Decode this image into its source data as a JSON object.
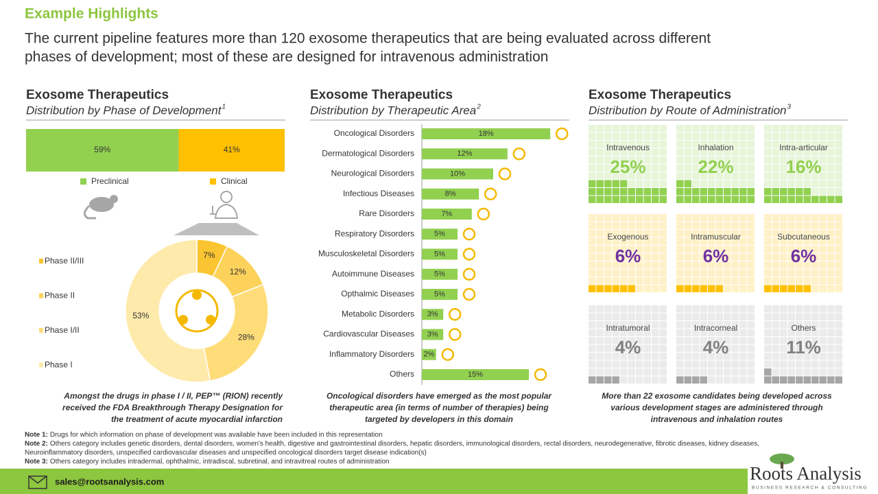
{
  "header": {
    "title": "Example Highlights",
    "subtitle": [
      "The current pipeline features more than 120 exosome therapeutics that are being evaluated across different",
      "phases of development; most of these are designed for intravenous administration"
    ]
  },
  "chart_data": [
    {
      "type": "stacked-bar",
      "title": "Exosome Therapeutics",
      "subtitle": "Distribution by Phase of Development",
      "note_ref": "1",
      "series": [
        {
          "name": "Preclinical",
          "color": "#92d050",
          "values": [
            59
          ],
          "value_labels": [
            "59%"
          ]
        },
        {
          "name": "Clinical",
          "color": "#ffc000",
          "values": [
            41
          ],
          "value_labels": [
            "41%"
          ]
        }
      ]
    },
    {
      "type": "pie",
      "categories": [
        "Phase II/III",
        "Phase II",
        "Phase I/II",
        "Phase I"
      ],
      "values": [
        7,
        12,
        28,
        53
      ],
      "value_labels": [
        "7%",
        "12%",
        "28%",
        "53%"
      ],
      "colors": [
        "#fbc531",
        "#fdd25a",
        "#fedc78",
        "#feeaaa"
      ],
      "legend": "left",
      "caption": [
        "Amongst the drugs in phase I / II, PEP™ (RION) recently",
        "received the FDA Breakthrough Therapy Designation for",
        "the treatment of acute myocardial infarction"
      ]
    },
    {
      "type": "hbar",
      "title": "Exosome Therapeutics",
      "subtitle": "Distribution by Therapeutic Area",
      "note_ref": "2",
      "color": "#92d050",
      "categories": [
        "Oncological Disorders",
        "Dermatological Disorders",
        "Neurological Disorders",
        "Infectious Diseases",
        "Rare Disorders",
        "Respiratory Disorders",
        "Musculoskeletal Disorders",
        "Autoimmune Diseases",
        "Opthalmic Diseases",
        "Metabolic Disorders",
        "Cardiovascular Diseases",
        "Inflammatory Disorders",
        "Others"
      ],
      "values": [
        18,
        12,
        10,
        8,
        7,
        5,
        5,
        5,
        5,
        3,
        3,
        2,
        15
      ],
      "value_labels": [
        "18%",
        "12%",
        "10%",
        "8%",
        "7%",
        "5%",
        "5%",
        "5%",
        "5%",
        "3%",
        "3%",
        "2%",
        "15%"
      ],
      "caption": [
        "Oncological disorders have emerged as the most popular",
        "therapeutic area (in terms of number of therapies) being",
        "targeted by developers in this domain"
      ]
    },
    {
      "type": "waffle",
      "title": "Exosome Therapeutics",
      "subtitle": "Distribution by Route of Administration",
      "note_ref": "3",
      "categories": [
        "Intravenous",
        "Inhalation",
        "Intra-articular",
        "Exogenous",
        "Intramuscular",
        "Subcutaneous",
        "Intratumoral",
        "Intracorneal",
        "Others"
      ],
      "values": [
        25,
        22,
        16,
        6,
        6,
        6,
        4,
        4,
        11
      ],
      "value_labels": [
        "25%",
        "22%",
        "16%",
        "6%",
        "6%",
        "6%",
        "4%",
        "4%",
        "11%"
      ],
      "colors": [
        "#92d050",
        "#92d050",
        "#92d050",
        "#ffc000",
        "#ffc000",
        "#ffc000",
        "#a6a6a6",
        "#a6a6a6",
        "#a6a6a6"
      ],
      "label_colors": [
        "#92d050",
        "#92d050",
        "#92d050",
        "#7030a0",
        "#7030a0",
        "#7030a0",
        "#808080",
        "#808080",
        "#808080"
      ],
      "caption": [
        "More than 22 exosome candidates being developed across",
        "various development stages are administered through",
        "intravenous and inhalation routes"
      ]
    }
  ],
  "notes": [
    {
      "label": "Note 1:",
      "text": [
        "Drugs for which information on phase of development was available have been included in this representation"
      ]
    },
    {
      "label": "Note 2:",
      "text": [
        "Others category includes genetic disorders, dental disorders, women's health, digestive and gastrointestinal disorders, hepatic disorders, immunological disorders, rectal disorders, neurodegenerative, fibrotic diseases, kidney diseases,",
        "Neuroinflammatory disorders, unspecified cardiovascular diseases and unspecified oncological disorders target disease indication(s)"
      ]
    },
    {
      "label": "Note 3:",
      "text": [
        "Others category includes intradermal, ophthalmic, intradiscal, subretinal, and intravitreal routes of administration"
      ]
    }
  ],
  "footer": {
    "email": "sales@rootsanalysis.com",
    "brand": "Roots Analysis",
    "tagline": "BUSINESS RESEARCH & CONSULTING"
  }
}
